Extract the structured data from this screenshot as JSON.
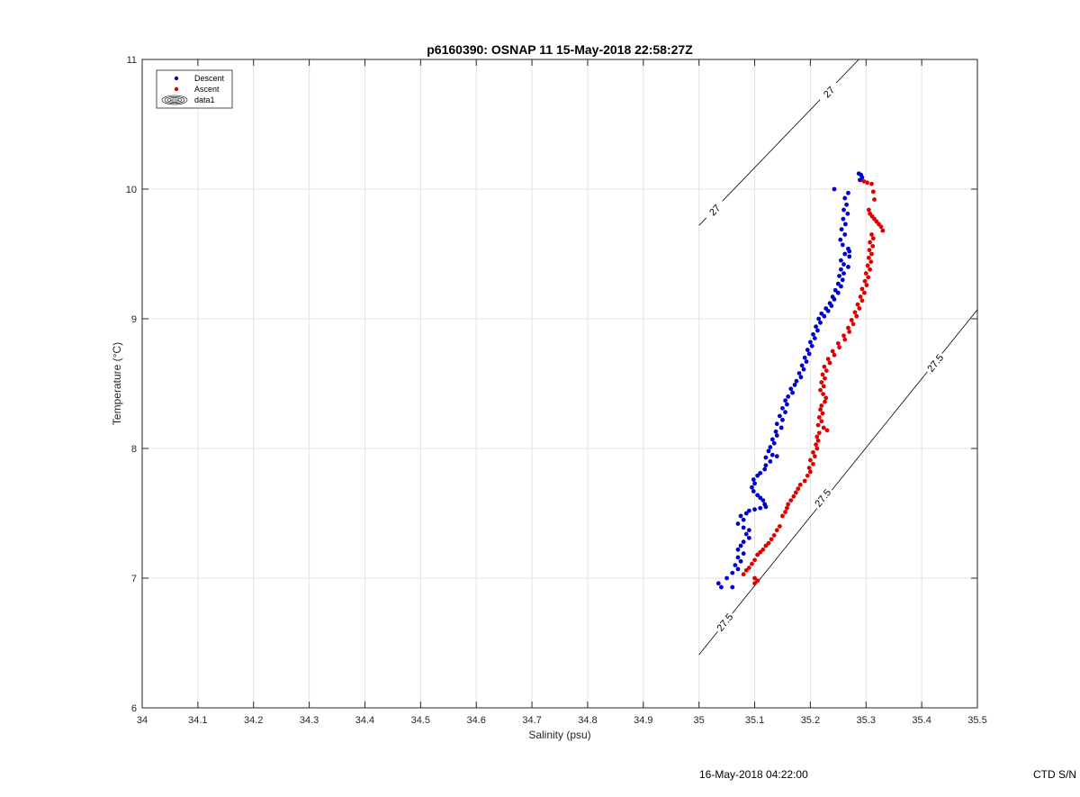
{
  "chart_data": {
    "type": "scatter",
    "title": "p6160390: OSNAP 11 15-May-2018 22:58:27Z",
    "xlabel": "Salinity (psu)",
    "ylabel": "Temperature (°C)",
    "xlim": [
      34,
      35.5
    ],
    "ylim": [
      6,
      11
    ],
    "xticks": [
      "34",
      "34.1",
      "34.2",
      "34.3",
      "34.4",
      "34.5",
      "34.6",
      "34.7",
      "34.8",
      "34.9",
      "35",
      "35.1",
      "35.2",
      "35.3",
      "35.4",
      "35.5"
    ],
    "yticks": [
      "6",
      "7",
      "8",
      "9",
      "10",
      "11"
    ],
    "grid": true,
    "legend_position": "top-left",
    "legend": [
      {
        "name": "Descent",
        "color": "#0000cc",
        "marker": "dot"
      },
      {
        "name": "Ascent",
        "color": "#dd0000",
        "marker": "dot"
      },
      {
        "name": "data1",
        "marker": "contour"
      }
    ],
    "contours": [
      {
        "level": "27",
        "points": [
          [
            35.0,
            9.72
          ],
          [
            35.287,
            11.0
          ]
        ],
        "labels": [
          [
            35.028,
            9.84
          ],
          [
            35.233,
            10.75
          ]
        ]
      },
      {
        "level": "27.5",
        "points": [
          [
            35.0,
            6.41
          ],
          [
            35.5,
            9.07
          ]
        ],
        "labels": [
          [
            35.046,
            6.66
          ],
          [
            35.222,
            7.62
          ],
          [
            35.424,
            8.66
          ]
        ]
      }
    ],
    "series": [
      {
        "name": "Descent",
        "color": "#0000cc",
        "points": [
          [
            35.287,
            10.12
          ],
          [
            35.291,
            10.11
          ],
          [
            35.293,
            10.09
          ],
          [
            35.289,
            10.07
          ],
          [
            35.243,
            10.0
          ],
          [
            35.268,
            9.97
          ],
          [
            35.262,
            9.93
          ],
          [
            35.265,
            9.88
          ],
          [
            35.26,
            9.84
          ],
          [
            35.267,
            9.81
          ],
          [
            35.259,
            9.77
          ],
          [
            35.263,
            9.73
          ],
          [
            35.256,
            9.69
          ],
          [
            35.262,
            9.65
          ],
          [
            35.254,
            9.61
          ],
          [
            35.258,
            9.57
          ],
          [
            35.268,
            9.54
          ],
          [
            35.27,
            9.52
          ],
          [
            35.262,
            9.5
          ],
          [
            35.27,
            9.48
          ],
          [
            35.255,
            9.45
          ],
          [
            35.26,
            9.42
          ],
          [
            35.268,
            9.4
          ],
          [
            35.255,
            9.38
          ],
          [
            35.26,
            9.35
          ],
          [
            35.252,
            9.33
          ],
          [
            35.258,
            9.3
          ],
          [
            35.25,
            9.27
          ],
          [
            35.255,
            9.25
          ],
          [
            35.245,
            9.22
          ],
          [
            35.25,
            9.2
          ],
          [
            35.24,
            9.17
          ],
          [
            35.243,
            9.15
          ],
          [
            35.235,
            9.12
          ],
          [
            35.238,
            9.1
          ],
          [
            35.228,
            9.08
          ],
          [
            35.232,
            9.06
          ],
          [
            35.22,
            9.04
          ],
          [
            35.225,
            9.02
          ],
          [
            35.215,
            9.0
          ],
          [
            35.218,
            8.97
          ],
          [
            35.21,
            8.94
          ],
          [
            35.213,
            8.91
          ],
          [
            35.205,
            8.88
          ],
          [
            35.208,
            8.85
          ],
          [
            35.2,
            8.82
          ],
          [
            35.203,
            8.79
          ],
          [
            35.195,
            8.76
          ],
          [
            35.198,
            8.73
          ],
          [
            35.19,
            8.7
          ],
          [
            35.193,
            8.67
          ],
          [
            35.185,
            8.64
          ],
          [
            35.188,
            8.61
          ],
          [
            35.18,
            8.58
          ],
          [
            35.183,
            8.55
          ],
          [
            35.175,
            8.52
          ],
          [
            35.172,
            8.49
          ],
          [
            35.165,
            8.46
          ],
          [
            35.168,
            8.43
          ],
          [
            35.16,
            8.4
          ],
          [
            35.155,
            8.37
          ],
          [
            35.158,
            8.34
          ],
          [
            35.15,
            8.31
          ],
          [
            35.155,
            8.28
          ],
          [
            35.145,
            8.25
          ],
          [
            35.15,
            8.22
          ],
          [
            35.14,
            8.19
          ],
          [
            35.148,
            8.16
          ],
          [
            35.138,
            8.13
          ],
          [
            35.14,
            8.1
          ],
          [
            35.132,
            8.07
          ],
          [
            35.135,
            8.04
          ],
          [
            35.128,
            8.01
          ],
          [
            35.125,
            7.98
          ],
          [
            35.132,
            7.95
          ],
          [
            35.14,
            7.94
          ],
          [
            35.12,
            7.93
          ],
          [
            35.128,
            7.9
          ],
          [
            35.12,
            7.87
          ],
          [
            35.118,
            7.84
          ],
          [
            35.11,
            7.81
          ],
          [
            35.105,
            7.79
          ],
          [
            35.098,
            7.76
          ],
          [
            35.1,
            7.73
          ],
          [
            35.095,
            7.7
          ],
          [
            35.098,
            7.67
          ],
          [
            35.105,
            7.64
          ],
          [
            35.11,
            7.62
          ],
          [
            35.115,
            7.6
          ],
          [
            35.118,
            7.57
          ],
          [
            35.12,
            7.55
          ],
          [
            35.11,
            7.54
          ],
          [
            35.1,
            7.53
          ],
          [
            35.09,
            7.52
          ],
          [
            35.085,
            7.5
          ],
          [
            35.075,
            7.48
          ],
          [
            35.08,
            7.45
          ],
          [
            35.07,
            7.42
          ],
          [
            35.08,
            7.39
          ],
          [
            35.09,
            7.37
          ],
          [
            35.085,
            7.34
          ],
          [
            35.09,
            7.31
          ],
          [
            35.08,
            7.28
          ],
          [
            35.075,
            7.25
          ],
          [
            35.07,
            7.22
          ],
          [
            35.08,
            7.19
          ],
          [
            35.07,
            7.16
          ],
          [
            35.075,
            7.13
          ],
          [
            35.065,
            7.1
          ],
          [
            35.07,
            7.07
          ],
          [
            35.06,
            7.04
          ],
          [
            35.05,
            7.0
          ],
          [
            35.035,
            6.96
          ],
          [
            35.04,
            6.93
          ],
          [
            35.06,
            6.93
          ]
        ]
      },
      {
        "name": "Ascent",
        "color": "#dd0000",
        "points": [
          [
            35.296,
            10.06
          ],
          [
            35.302,
            10.05
          ],
          [
            35.31,
            10.04
          ],
          [
            35.313,
            9.98
          ],
          [
            35.315,
            9.92
          ],
          [
            35.305,
            9.84
          ],
          [
            35.307,
            9.81
          ],
          [
            35.311,
            9.79
          ],
          [
            35.315,
            9.77
          ],
          [
            35.319,
            9.75
          ],
          [
            35.323,
            9.73
          ],
          [
            35.327,
            9.71
          ],
          [
            35.33,
            9.68
          ],
          [
            35.31,
            9.65
          ],
          [
            35.313,
            9.62
          ],
          [
            35.307,
            9.59
          ],
          [
            35.312,
            9.56
          ],
          [
            35.306,
            9.53
          ],
          [
            35.31,
            9.5
          ],
          [
            35.305,
            9.47
          ],
          [
            35.309,
            9.44
          ],
          [
            35.303,
            9.41
          ],
          [
            35.307,
            9.38
          ],
          [
            35.3,
            9.35
          ],
          [
            35.304,
            9.32
          ],
          [
            35.298,
            9.29
          ],
          [
            35.301,
            9.26
          ],
          [
            35.293,
            9.23
          ],
          [
            35.297,
            9.2
          ],
          [
            35.29,
            9.17
          ],
          [
            35.293,
            9.14
          ],
          [
            35.285,
            9.11
          ],
          [
            35.288,
            9.08
          ],
          [
            35.28,
            9.05
          ],
          [
            35.283,
            9.02
          ],
          [
            35.274,
            8.99
          ],
          [
            35.277,
            8.96
          ],
          [
            35.268,
            8.93
          ],
          [
            35.27,
            8.9
          ],
          [
            35.26,
            8.87
          ],
          [
            35.262,
            8.84
          ],
          [
            35.25,
            8.81
          ],
          [
            35.252,
            8.78
          ],
          [
            35.24,
            8.75
          ],
          [
            35.243,
            8.72
          ],
          [
            35.232,
            8.69
          ],
          [
            35.235,
            8.66
          ],
          [
            35.225,
            8.63
          ],
          [
            35.229,
            8.6
          ],
          [
            35.222,
            8.57
          ],
          [
            35.226,
            8.54
          ],
          [
            35.22,
            8.51
          ],
          [
            35.224,
            8.48
          ],
          [
            35.218,
            8.45
          ],
          [
            35.223,
            8.42
          ],
          [
            35.228,
            8.39
          ],
          [
            35.226,
            8.36
          ],
          [
            35.22,
            8.33
          ],
          [
            35.218,
            8.3
          ],
          [
            35.222,
            8.27
          ],
          [
            35.216,
            8.24
          ],
          [
            35.22,
            8.21
          ],
          [
            35.214,
            8.18
          ],
          [
            35.224,
            8.16
          ],
          [
            35.23,
            8.14
          ],
          [
            35.216,
            8.12
          ],
          [
            35.212,
            8.09
          ],
          [
            35.214,
            8.06
          ],
          [
            35.21,
            8.03
          ],
          [
            35.212,
            8.0
          ],
          [
            35.205,
            7.97
          ],
          [
            35.208,
            7.94
          ],
          [
            35.2,
            7.91
          ],
          [
            35.205,
            7.88
          ],
          [
            35.198,
            7.85
          ],
          [
            35.2,
            7.82
          ],
          [
            35.195,
            7.79
          ],
          [
            35.19,
            7.75
          ],
          [
            35.182,
            7.72
          ],
          [
            35.178,
            7.69
          ],
          [
            35.174,
            7.66
          ],
          [
            35.17,
            7.63
          ],
          [
            35.165,
            7.6
          ],
          [
            35.16,
            7.57
          ],
          [
            35.158,
            7.54
          ],
          [
            35.155,
            7.51
          ],
          [
            35.15,
            7.48
          ],
          [
            35.145,
            7.4
          ],
          [
            35.14,
            7.37
          ],
          [
            35.135,
            7.33
          ],
          [
            35.13,
            7.3
          ],
          [
            35.125,
            7.27
          ],
          [
            35.12,
            7.25
          ],
          [
            35.115,
            7.22
          ],
          [
            35.11,
            7.2
          ],
          [
            35.105,
            7.18
          ],
          [
            35.1,
            7.14
          ],
          [
            35.095,
            7.11
          ],
          [
            35.09,
            7.08
          ],
          [
            35.085,
            7.06
          ],
          [
            35.08,
            7.03
          ],
          [
            35.1,
            7.0
          ],
          [
            35.105,
            6.98
          ],
          [
            35.1,
            6.96
          ]
        ]
      }
    ]
  },
  "footer": {
    "timestamp": "16-May-2018 04:22:00",
    "ctd": "CTD S/N"
  }
}
